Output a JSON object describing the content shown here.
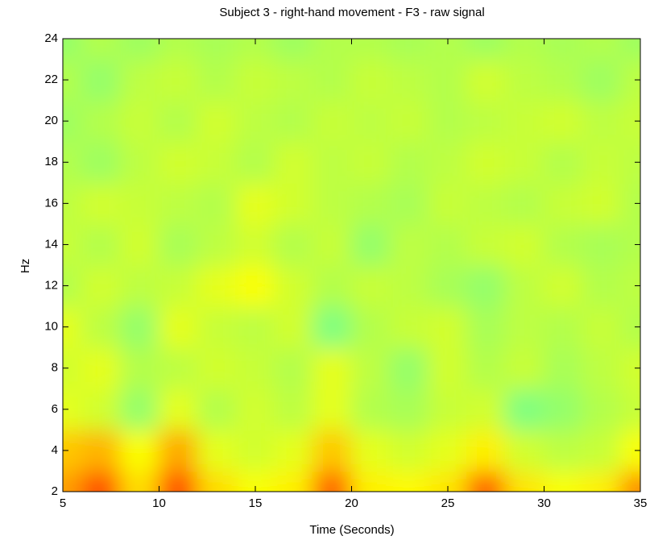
{
  "chart_data": {
    "type": "heatmap",
    "title": "Subject 3 - right-hand movement - F3 - raw signal",
    "xlabel": "Time (Seconds)",
    "ylabel": "Hz",
    "x": [
      5,
      7,
      9,
      11,
      13,
      15,
      17,
      19,
      21,
      23,
      25,
      27,
      29,
      31,
      33,
      35
    ],
    "y": [
      2,
      4,
      6,
      8,
      10,
      12,
      14,
      16,
      18,
      20,
      22,
      24
    ],
    "values": [
      [
        0.72,
        0.8,
        0.66,
        0.8,
        0.66,
        0.62,
        0.64,
        0.78,
        0.64,
        0.63,
        0.65,
        0.78,
        0.65,
        0.62,
        0.64,
        0.74
      ],
      [
        0.68,
        0.7,
        0.62,
        0.71,
        0.6,
        0.58,
        0.6,
        0.68,
        0.6,
        0.58,
        0.6,
        0.64,
        0.58,
        0.56,
        0.57,
        0.62
      ],
      [
        0.6,
        0.58,
        0.52,
        0.6,
        0.55,
        0.58,
        0.56,
        0.6,
        0.55,
        0.54,
        0.57,
        0.58,
        0.5,
        0.52,
        0.55,
        0.57
      ],
      [
        0.58,
        0.6,
        0.55,
        0.56,
        0.58,
        0.57,
        0.55,
        0.6,
        0.56,
        0.52,
        0.58,
        0.55,
        0.57,
        0.54,
        0.56,
        0.58
      ],
      [
        0.6,
        0.56,
        0.52,
        0.6,
        0.57,
        0.56,
        0.58,
        0.5,
        0.55,
        0.57,
        0.58,
        0.54,
        0.56,
        0.55,
        0.57,
        0.55
      ],
      [
        0.55,
        0.58,
        0.56,
        0.57,
        0.6,
        0.62,
        0.58,
        0.55,
        0.57,
        0.56,
        0.54,
        0.52,
        0.56,
        0.58,
        0.55,
        0.56
      ],
      [
        0.57,
        0.55,
        0.58,
        0.54,
        0.56,
        0.58,
        0.55,
        0.57,
        0.52,
        0.56,
        0.55,
        0.57,
        0.58,
        0.55,
        0.54,
        0.55
      ],
      [
        0.56,
        0.58,
        0.57,
        0.56,
        0.55,
        0.6,
        0.58,
        0.56,
        0.55,
        0.54,
        0.57,
        0.56,
        0.55,
        0.57,
        0.58,
        0.55
      ],
      [
        0.55,
        0.53,
        0.56,
        0.58,
        0.57,
        0.55,
        0.58,
        0.56,
        0.57,
        0.55,
        0.56,
        0.58,
        0.57,
        0.55,
        0.57,
        0.56
      ],
      [
        0.53,
        0.55,
        0.57,
        0.55,
        0.58,
        0.56,
        0.55,
        0.57,
        0.56,
        0.57,
        0.55,
        0.56,
        0.57,
        0.58,
        0.56,
        0.57
      ],
      [
        0.55,
        0.52,
        0.56,
        0.57,
        0.55,
        0.57,
        0.56,
        0.55,
        0.57,
        0.56,
        0.55,
        0.58,
        0.56,
        0.55,
        0.53,
        0.56
      ],
      [
        0.52,
        0.55,
        0.53,
        0.55,
        0.54,
        0.55,
        0.53,
        0.55,
        0.55,
        0.54,
        0.55,
        0.53,
        0.55,
        0.54,
        0.55,
        0.53
      ]
    ],
    "colormap": "jet",
    "clim": [
      0,
      1
    ],
    "xlim": [
      5,
      35
    ],
    "ylim": [
      2,
      24
    ],
    "xticks": [
      5,
      10,
      15,
      20,
      25,
      30,
      35
    ],
    "yticks": [
      2,
      4,
      6,
      8,
      10,
      12,
      14,
      16,
      18,
      20,
      22,
      24
    ]
  }
}
